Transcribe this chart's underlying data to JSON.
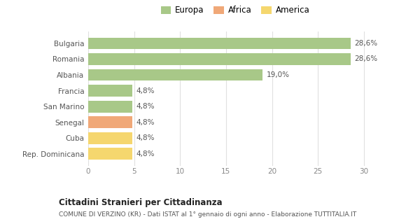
{
  "categories": [
    "Rep. Dominicana",
    "Cuba",
    "Senegal",
    "San Marino",
    "Francia",
    "Albania",
    "Romania",
    "Bulgaria"
  ],
  "values": [
    4.8,
    4.8,
    4.8,
    4.8,
    4.8,
    19.0,
    28.6,
    28.6
  ],
  "colors": [
    "#f5d76e",
    "#f5d66e",
    "#f0a878",
    "#a8c888",
    "#a8c888",
    "#a8c888",
    "#a8c888",
    "#a8c888"
  ],
  "labels": [
    "4,8%",
    "4,8%",
    "4,8%",
    "4,8%",
    "4,8%",
    "19,0%",
    "28,6%",
    "28,6%"
  ],
  "legend_items": [
    {
      "label": "Europa",
      "color": "#a8c888"
    },
    {
      "label": "Africa",
      "color": "#f0a878"
    },
    {
      "label": "America",
      "color": "#f5d76e"
    }
  ],
  "xlim": [
    0,
    32
  ],
  "xticks": [
    0,
    5,
    10,
    15,
    20,
    25,
    30
  ],
  "title_bold": "Cittadini Stranieri per Cittadinanza",
  "subtitle": "COMUNE DI VERZINO (KR) - Dati ISTAT al 1° gennaio di ogni anno - Elaborazione TUTTITALIA.IT",
  "background_color": "#ffffff",
  "grid_color": "#e0e0e0",
  "bar_height": 0.75
}
